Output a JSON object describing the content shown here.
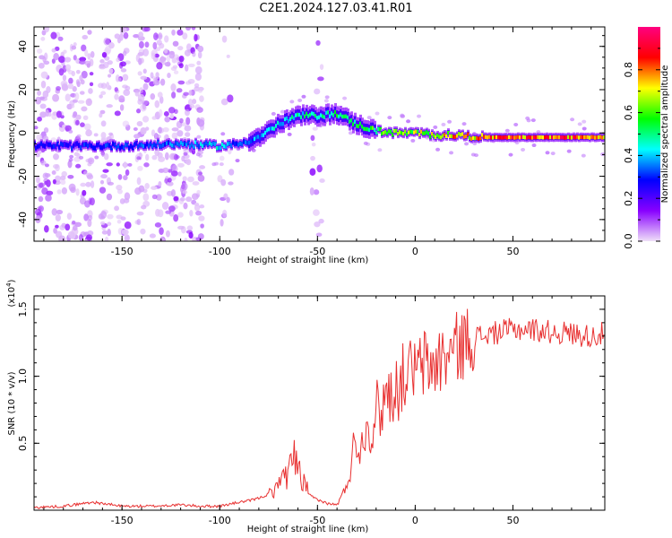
{
  "figure": {
    "title": "C2E1.2024.127.03.41.R01"
  },
  "chart_data": [
    {
      "type": "heatmap",
      "title": "C2E1.2024.127.03.41.R01",
      "xlabel": "Height of straight line (km)",
      "ylabel": "Frequency (Hz)",
      "xlim": [
        -195,
        97
      ],
      "ylim": [
        -50,
        49
      ],
      "xticks": [
        -150,
        -100,
        -50,
        0,
        50
      ],
      "yticks": [
        -40,
        -20,
        0,
        20,
        40
      ],
      "grid": false,
      "colorbar": {
        "label": "Normalized spectral amplitude",
        "range": [
          0,
          1
        ],
        "ticks": [
          0.0,
          0.2,
          0.4,
          0.6,
          0.8
        ],
        "colors": [
          "#f0e0f8",
          "#8800ff",
          "#0000ff",
          "#00ffff",
          "#00ff00",
          "#ffff00",
          "#ff0000",
          "#ff0080"
        ]
      },
      "ridge": {
        "description_free": true,
        "points_x": [
          -195,
          -150,
          -120,
          -100,
          -90,
          -80,
          -70,
          -60,
          -50,
          -40,
          -30,
          -20,
          -10,
          0,
          10,
          20,
          35,
          60,
          97
        ],
        "points_freq": [
          -6,
          -6,
          -5,
          -6,
          -5,
          -2,
          4,
          8,
          8,
          9,
          4,
          1,
          0,
          0,
          -1,
          -1,
          -2,
          -2,
          -2
        ],
        "points_amp": [
          0.3,
          0.35,
          0.4,
          0.5,
          0.35,
          0.45,
          0.5,
          0.55,
          0.55,
          0.6,
          0.6,
          0.65,
          0.7,
          0.75,
          0.8,
          0.85,
          0.9,
          0.95,
          0.95
        ]
      }
    },
    {
      "type": "line",
      "xlabel": "Height of straight line (km)",
      "ylabel": "SNR (10 * v/v)",
      "yscale_label": "(x10",
      "yscale_exp": "4",
      "yscale_close": ")",
      "xlim": [
        -195,
        97
      ],
      "ylim": [
        0,
        1.6
      ],
      "xticks": [
        -150,
        -100,
        -50,
        0,
        50
      ],
      "yticks": [
        0.5,
        1.0,
        1.5
      ],
      "ytick_labels": [
        "0.5",
        "1.0",
        "1.5"
      ],
      "grid": false,
      "color": "#e83030",
      "x": [
        -195,
        -180,
        -165,
        -150,
        -135,
        -120,
        -110,
        -100,
        -90,
        -85,
        -80,
        -75,
        -70,
        -66,
        -62,
        -58,
        -55,
        -50,
        -45,
        -40,
        -36,
        -33,
        -31,
        -29,
        -27,
        -25,
        -22,
        -20,
        -18,
        -15,
        -12,
        -10,
        -8,
        -5,
        -3,
        -1,
        0,
        2,
        5,
        8,
        10,
        13,
        16,
        20,
        25,
        30,
        35,
        40,
        50,
        60,
        70,
        80,
        90,
        97
      ],
      "y": [
        0.02,
        0.03,
        0.06,
        0.03,
        0.03,
        0.04,
        0.03,
        0.03,
        0.06,
        0.07,
        0.09,
        0.12,
        0.16,
        0.22,
        0.32,
        0.2,
        0.12,
        0.08,
        0.05,
        0.04,
        0.15,
        0.3,
        0.55,
        0.45,
        0.5,
        0.65,
        0.55,
        0.8,
        0.7,
        0.9,
        0.85,
        0.95,
        0.9,
        1.05,
        1.0,
        1.1,
        1.0,
        1.05,
        1.1,
        1.05,
        1.1,
        1.12,
        1.15,
        1.2,
        1.25,
        1.3,
        1.3,
        1.32,
        1.35,
        1.35,
        1.33,
        1.32,
        1.3,
        1.32
      ]
    }
  ]
}
